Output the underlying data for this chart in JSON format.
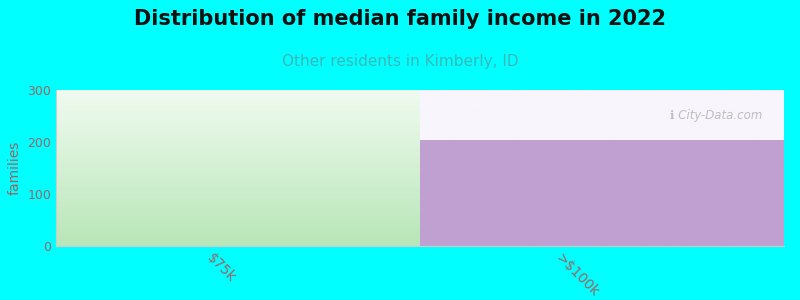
{
  "title": "Distribution of median family income in 2022",
  "subtitle": "Other residents in Kimberly, ID",
  "title_fontsize": 15,
  "subtitle_fontsize": 11,
  "subtitle_color": "#3ab8b8",
  "ylabel": "families",
  "ylabel_fontsize": 10,
  "background_color": "#00ffff",
  "plot_bg_color": "#ffffff",
  "categories": [
    "$75k",
    ">$100k"
  ],
  "values": [
    300,
    203
  ],
  "ylim": [
    0,
    300
  ],
  "yticks": [
    0,
    100,
    200,
    300
  ],
  "bar1_bottom_color": "#b8e6b8",
  "bar1_top_color": "#f0fbf0",
  "bar2_color": "#c0a0d0",
  "bar2_top_color": "#f8f5fc",
  "watermark": "ℹ City-Data.com",
  "tick_label_color": "#996666",
  "tick_label_rotation": -45,
  "grid_color": "#dddddd",
  "spine_color": "#cccccc"
}
